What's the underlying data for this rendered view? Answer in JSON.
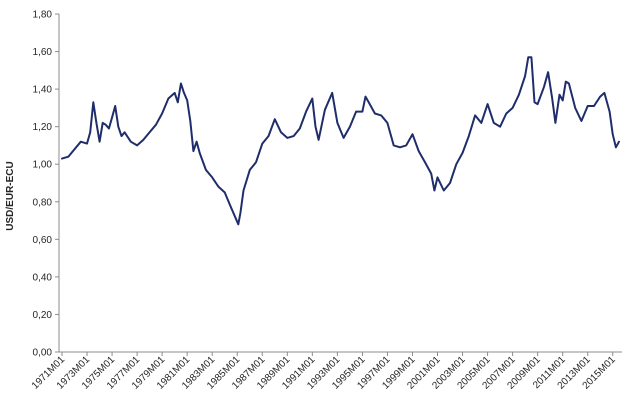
{
  "chart_data": {
    "type": "line",
    "title": "",
    "xlabel": "",
    "ylabel": "USD/EUR-ECU",
    "ylim": [
      0,
      1.8
    ],
    "grid": false,
    "legend": "none",
    "line_color": "#1f2d6b",
    "y_ticks": [
      "0,00",
      "0,20",
      "0,40",
      "0,60",
      "0,80",
      "1,00",
      "1,20",
      "1,40",
      "1,60",
      "1,80"
    ],
    "x_ticks": [
      "1971M01",
      "1973M01",
      "1975M01",
      "1977M01",
      "1979M01",
      "1981M01",
      "1983M01",
      "1985M01",
      "1987M01",
      "1989M01",
      "1991M01",
      "1993M01",
      "1995M01",
      "1997M01",
      "1999M01",
      "2001M01",
      "2003M01",
      "2005M01",
      "2007M01",
      "2009M01",
      "2011M01",
      "2013M01",
      "2015M01"
    ],
    "series": [
      {
        "x": [
          "1971M01",
          "1971M07",
          "1972M01",
          "1972M07",
          "1973M01",
          "1973M04",
          "1973M07",
          "1973M10",
          "1974M01",
          "1974M04",
          "1974M07",
          "1974M10",
          "1975M01",
          "1975M04",
          "1975M07",
          "1975M10",
          "1976M01",
          "1976M07",
          "1977M01",
          "1977M07",
          "1978M01",
          "1978M07",
          "1979M01",
          "1979M07",
          "1980M01",
          "1980M04",
          "1980M07",
          "1980M10",
          "1981M01",
          "1981M04",
          "1981M07",
          "1981M10",
          "1982M01",
          "1982M07",
          "1983M01",
          "1983M07",
          "1984M01",
          "1984M07",
          "1985M02",
          "1985M04",
          "1985M07",
          "1986M01",
          "1986M07",
          "1987M01",
          "1987M07",
          "1988M01",
          "1988M07",
          "1989M01",
          "1989M07",
          "1990M01",
          "1990M07",
          "1991M01",
          "1991M04",
          "1991M07",
          "1992M01",
          "1992M08",
          "1993M01",
          "1993M07",
          "1994M01",
          "1994M07",
          "1995M01",
          "1995M04",
          "1995M07",
          "1996M01",
          "1996M07",
          "1997M01",
          "1997M07",
          "1998M01",
          "1998M07",
          "1999M01",
          "1999M07",
          "2000M01",
          "2000M07",
          "2000M10",
          "2001M01",
          "2001M07",
          "2002M01",
          "2002M07",
          "2003M01",
          "2003M07",
          "2004M01",
          "2004M07",
          "2005M01",
          "2005M07",
          "2006M01",
          "2006M07",
          "2007M01",
          "2007M07",
          "2008M01",
          "2008M04",
          "2008M07",
          "2008M10",
          "2009M01",
          "2009M07",
          "2009M11",
          "2010M03",
          "2010M06",
          "2010M10",
          "2011M01",
          "2011M04",
          "2011M07",
          "2012M01",
          "2012M07",
          "2013M01",
          "2013M07",
          "2014M01",
          "2014M05",
          "2014M10",
          "2015M01",
          "2015M04",
          "2015M07"
        ],
        "values": [
          1.03,
          1.04,
          1.08,
          1.12,
          1.11,
          1.17,
          1.33,
          1.22,
          1.12,
          1.22,
          1.21,
          1.19,
          1.25,
          1.31,
          1.2,
          1.15,
          1.17,
          1.12,
          1.1,
          1.13,
          1.17,
          1.21,
          1.27,
          1.35,
          1.38,
          1.33,
          1.43,
          1.38,
          1.34,
          1.23,
          1.07,
          1.12,
          1.06,
          0.97,
          0.93,
          0.88,
          0.85,
          0.77,
          0.68,
          0.74,
          0.86,
          0.97,
          1.01,
          1.11,
          1.15,
          1.24,
          1.17,
          1.14,
          1.15,
          1.19,
          1.28,
          1.35,
          1.2,
          1.13,
          1.29,
          1.38,
          1.22,
          1.14,
          1.2,
          1.28,
          1.28,
          1.36,
          1.33,
          1.27,
          1.26,
          1.22,
          1.1,
          1.09,
          1.1,
          1.16,
          1.07,
          1.01,
          0.95,
          0.86,
          0.93,
          0.86,
          0.9,
          1.0,
          1.06,
          1.15,
          1.26,
          1.22,
          1.32,
          1.22,
          1.2,
          1.27,
          1.3,
          1.37,
          1.47,
          1.57,
          1.57,
          1.33,
          1.32,
          1.41,
          1.49,
          1.35,
          1.22,
          1.37,
          1.34,
          1.44,
          1.43,
          1.3,
          1.23,
          1.31,
          1.31,
          1.36,
          1.38,
          1.28,
          1.16,
          1.09,
          1.12
        ]
      }
    ]
  }
}
